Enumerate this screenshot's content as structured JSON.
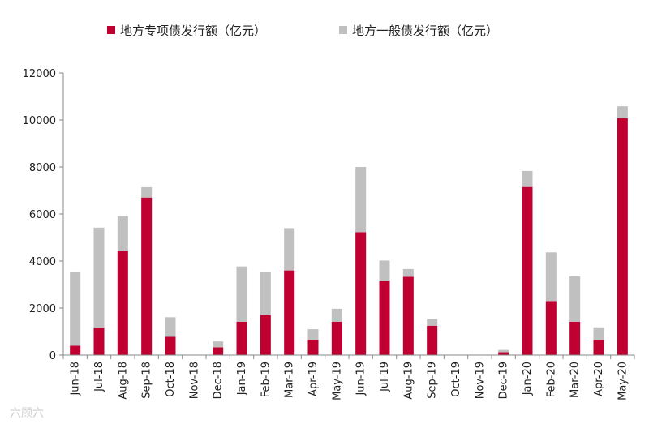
{
  "chart_data": {
    "type": "bar",
    "stacked": true,
    "categories": [
      "Jun-18",
      "Jul-18",
      "Aug-18",
      "Sep-18",
      "Oct-18",
      "Nov-18",
      "Dec-18",
      "Jan-19",
      "Feb-19",
      "Mar-19",
      "Apr-19",
      "May-19",
      "Jun-19",
      "Jul-19",
      "Aug-19",
      "Sep-19",
      "Oct-19",
      "Nov-19",
      "Dec-19",
      "Jan-20",
      "Feb-20",
      "Mar-20",
      "Apr-20",
      "May-20"
    ],
    "series": [
      {
        "name": "地方专项债发行额（亿元）",
        "color": "#c00030",
        "values": [
          400,
          1170,
          4430,
          6700,
          780,
          0,
          330,
          1420,
          1700,
          3600,
          650,
          1420,
          5230,
          3170,
          3330,
          1250,
          0,
          0,
          120,
          7150,
          2300,
          1420,
          650,
          10080
        ]
      },
      {
        "name": "地方一般债发行额（亿元）",
        "color": "#c0c0c0",
        "values": [
          3120,
          4250,
          1480,
          440,
          830,
          0,
          250,
          2350,
          1820,
          1800,
          450,
          550,
          2770,
          850,
          330,
          270,
          0,
          0,
          100,
          680,
          2070,
          1930,
          530,
          500
        ]
      }
    ],
    "ylim": [
      0,
      12000
    ],
    "yticks": [
      0,
      2000,
      4000,
      6000,
      8000,
      10000,
      12000
    ],
    "yticks_labels": [
      "0",
      "2000",
      "4000",
      "6000",
      "8000",
      "10000",
      "12000"
    ],
    "legend_position": "top",
    "grid": false
  },
  "watermark": "六顾六",
  "colors": {
    "axis": "#888888"
  }
}
